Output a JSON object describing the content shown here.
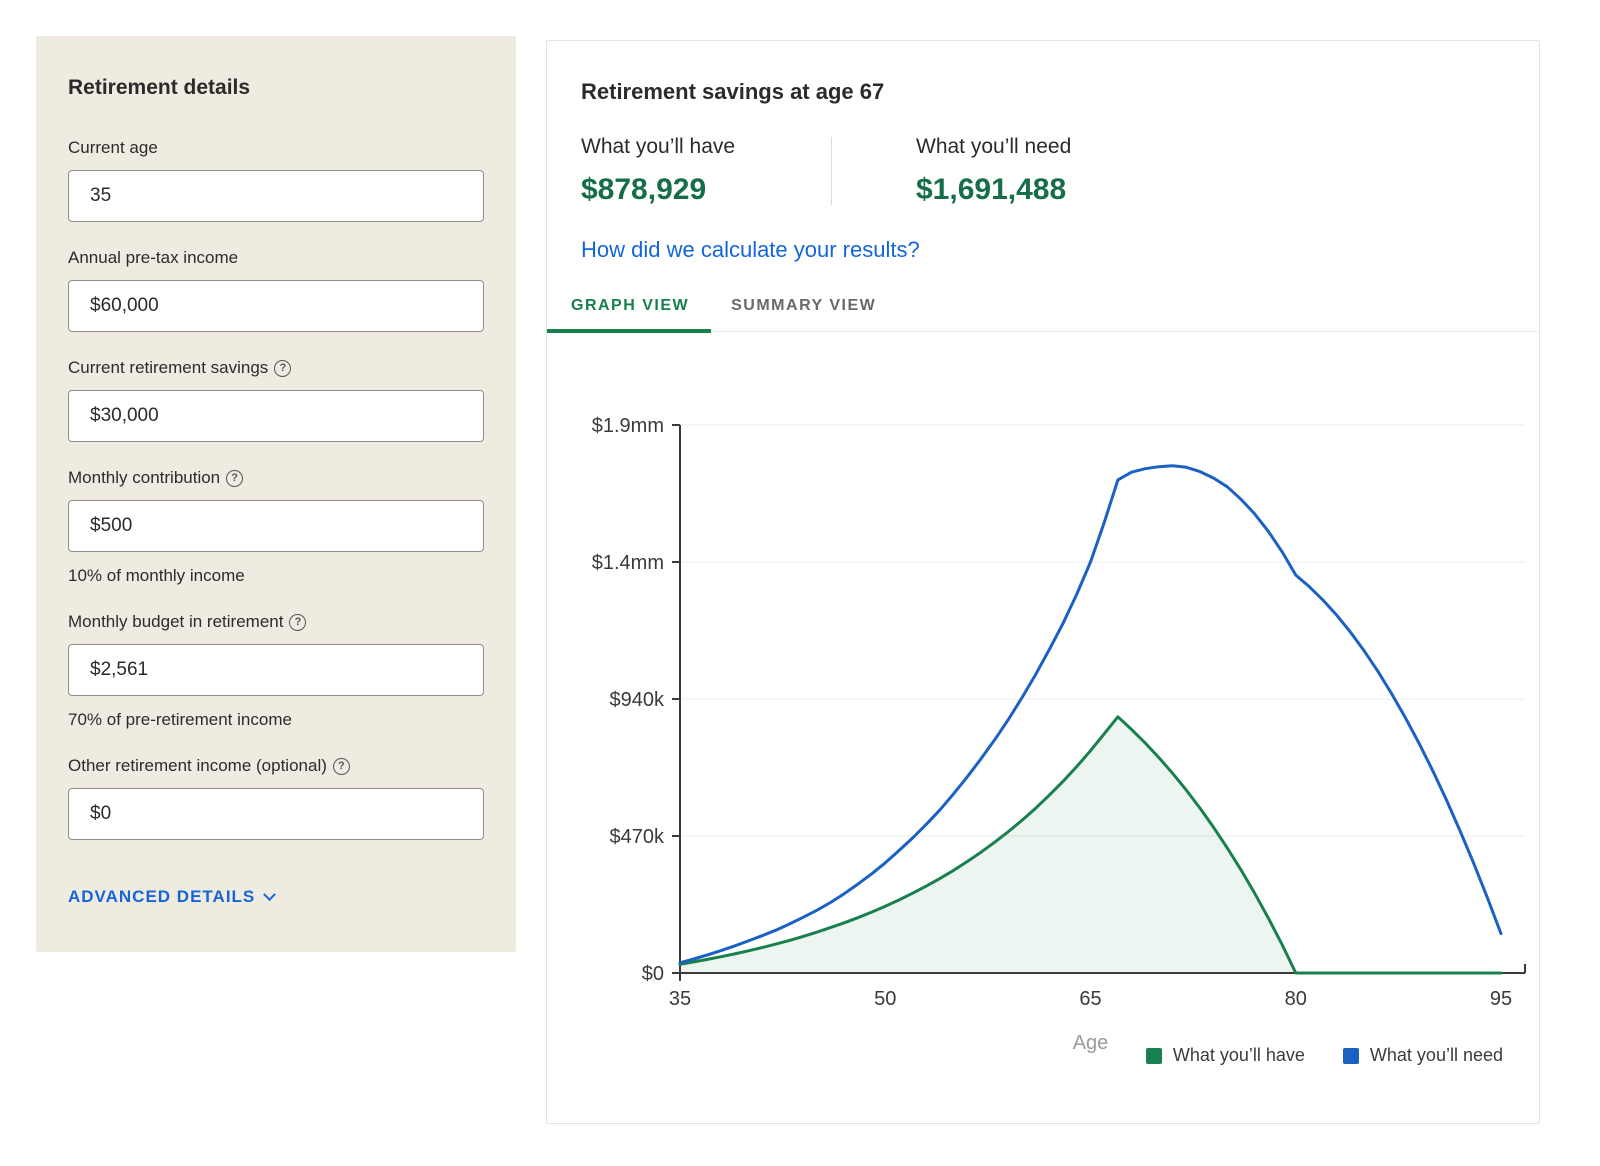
{
  "colors": {
    "brand_green": "#18804d",
    "stat_green": "#156e48",
    "link_blue": "#1565d8",
    "line_blue": "#1a61c4",
    "sidebar_bg": "#f0ebe1"
  },
  "sidebar": {
    "title": "Retirement details",
    "fields": [
      {
        "label": "Current age",
        "value": "35",
        "has_info": false,
        "helper": ""
      },
      {
        "label": "Annual pre-tax income",
        "value": "$60,000",
        "has_info": false,
        "helper": ""
      },
      {
        "label": "Current retirement savings",
        "value": "$30,000",
        "has_info": true,
        "helper": ""
      },
      {
        "label": "Monthly contribution",
        "value": "$500",
        "has_info": true,
        "helper": "10% of monthly income"
      },
      {
        "label": "Monthly budget in retirement",
        "value": "$2,561",
        "has_info": true,
        "helper": "70% of pre-retirement income"
      },
      {
        "label": "Other retirement income (optional)",
        "value": "$0",
        "has_info": true,
        "helper": ""
      }
    ],
    "advanced_details_label": "ADVANCED DETAILS"
  },
  "results": {
    "title": "Retirement savings at age 67",
    "have_label": "What you’ll have",
    "have_value": "$878,929",
    "need_label": "What you’ll need",
    "need_value": "$1,691,488",
    "calc_link": "How did we calculate your results?"
  },
  "tabs": [
    {
      "label": "GRAPH VIEW",
      "active": true
    },
    {
      "label": "SUMMARY VIEW",
      "active": false
    }
  ],
  "chart_data": {
    "type": "area",
    "title": "Retirement savings at age 67",
    "xlabel": "Age",
    "ylabel": "",
    "x_domain": [
      35,
      95
    ],
    "y_domain": [
      0,
      1880000
    ],
    "x_ticks": [
      35,
      50,
      65,
      80,
      95
    ],
    "y_ticks": [
      0,
      470000,
      940000,
      1410000,
      1880000
    ],
    "y_tick_labels": [
      "$0",
      "$470k",
      "$940k",
      "$1.4mm",
      "$1.9mm"
    ],
    "grid": "horizontal",
    "legend_position": "bottom-right",
    "x": [
      35,
      36,
      37,
      38,
      39,
      40,
      41,
      42,
      43,
      44,
      45,
      46,
      47,
      48,
      49,
      50,
      51,
      52,
      53,
      54,
      55,
      56,
      57,
      58,
      59,
      60,
      61,
      62,
      63,
      64,
      65,
      66,
      67,
      68,
      69,
      70,
      71,
      72,
      73,
      74,
      75,
      76,
      77,
      78,
      79,
      80,
      81,
      82,
      83,
      84,
      85,
      86,
      87,
      88,
      89,
      90,
      91,
      92,
      93,
      94,
      95
    ],
    "series": [
      {
        "name": "What you’ll have",
        "color": "#18804d",
        "fill": true,
        "fill_color": "rgba(24,128,77,0.08)",
        "values": [
          30000,
          38000,
          46600,
          55800,
          65600,
          76100,
          87200,
          99200,
          111900,
          125500,
          140000,
          155600,
          172100,
          189800,
          208800,
          229000,
          250500,
          273600,
          298200,
          324400,
          352500,
          382500,
          414500,
          448700,
          485200,
          524200,
          565800,
          610300,
          657800,
          708500,
          762700,
          820500,
          878929,
          835700,
          789100,
          739000,
          685200,
          627400,
          565600,
          499500,
          428900,
          353600,
          273400,
          188100,
          97400,
          0,
          0,
          0,
          0,
          0,
          0,
          0,
          0,
          0,
          0,
          0,
          0,
          0,
          0,
          0,
          0
        ]
      },
      {
        "name": "What you’ll need",
        "color": "#1a61c4",
        "fill": false,
        "fill_color": "none",
        "values": [
          35000,
          48000,
          62000,
          77000,
          93000,
          110000,
          128000,
          147000,
          168000,
          191000,
          215000,
          242000,
          272000,
          305000,
          340000,
          378000,
          420000,
          463000,
          510000,
          560000,
          615000,
          673000,
          735000,
          800000,
          870000,
          945000,
          1025000,
          1110000,
          1200000,
          1300000,
          1410000,
          1545000,
          1691488,
          1718000,
          1730000,
          1737000,
          1740000,
          1735000,
          1720000,
          1698000,
          1668000,
          1625000,
          1575000,
          1515000,
          1445000,
          1365000,
          1325000,
          1279000,
          1227000,
          1169000,
          1105000,
          1035000,
          959000,
          877000,
          789000,
          695000,
          595000,
          489000,
          377000,
          259000,
          135000
        ]
      }
    ]
  }
}
